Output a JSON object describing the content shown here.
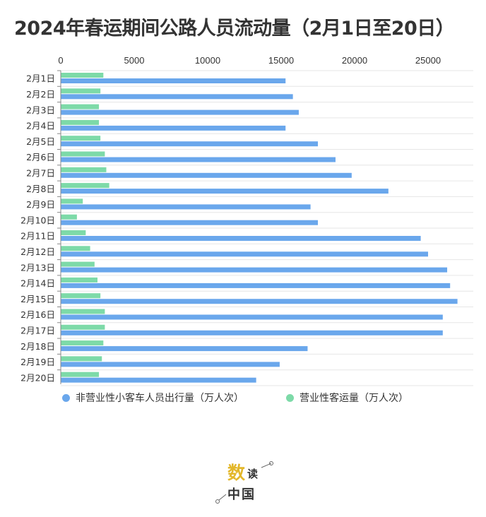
{
  "chart_data": {
    "type": "bar",
    "orientation": "horizontal",
    "title": "2024年春运期间公路人员流动量（2月1日至20日）",
    "categories": [
      "2月1日",
      "2月2日",
      "2月3日",
      "2月4日",
      "2月5日",
      "2月6日",
      "2月7日",
      "2月8日",
      "2月9日",
      "2月10日",
      "2月11日",
      "2月12日",
      "2月13日",
      "2月14日",
      "2月15日",
      "2月16日",
      "2月17日",
      "2月18日",
      "2月19日",
      "2月20日"
    ],
    "series": [
      {
        "name": "营业性客运量（万人次）",
        "color": "#7ddaa8",
        "values": [
          2900,
          2700,
          2600,
          2600,
          2700,
          3000,
          3100,
          3300,
          1500,
          1100,
          1700,
          2000,
          2300,
          2500,
          2700,
          3000,
          3000,
          2900,
          2800,
          2600
        ]
      },
      {
        "name": "非营业性小客车人员出行量（万人次）",
        "color": "#6aa7ec",
        "values": [
          15300,
          15800,
          16200,
          15300,
          17500,
          18700,
          19800,
          22300,
          17000,
          17500,
          24500,
          25000,
          26300,
          26500,
          27000,
          26000,
          26000,
          16800,
          14900,
          13300
        ]
      }
    ],
    "xlim": [
      0,
      28000
    ],
    "x_ticks": [
      "0",
      "5000",
      "10000",
      "15000",
      "20000",
      "25000"
    ],
    "grid": true,
    "legend_position": "bottom"
  },
  "logo": {
    "big": "数",
    "small1": "读",
    "small2": "中国"
  }
}
